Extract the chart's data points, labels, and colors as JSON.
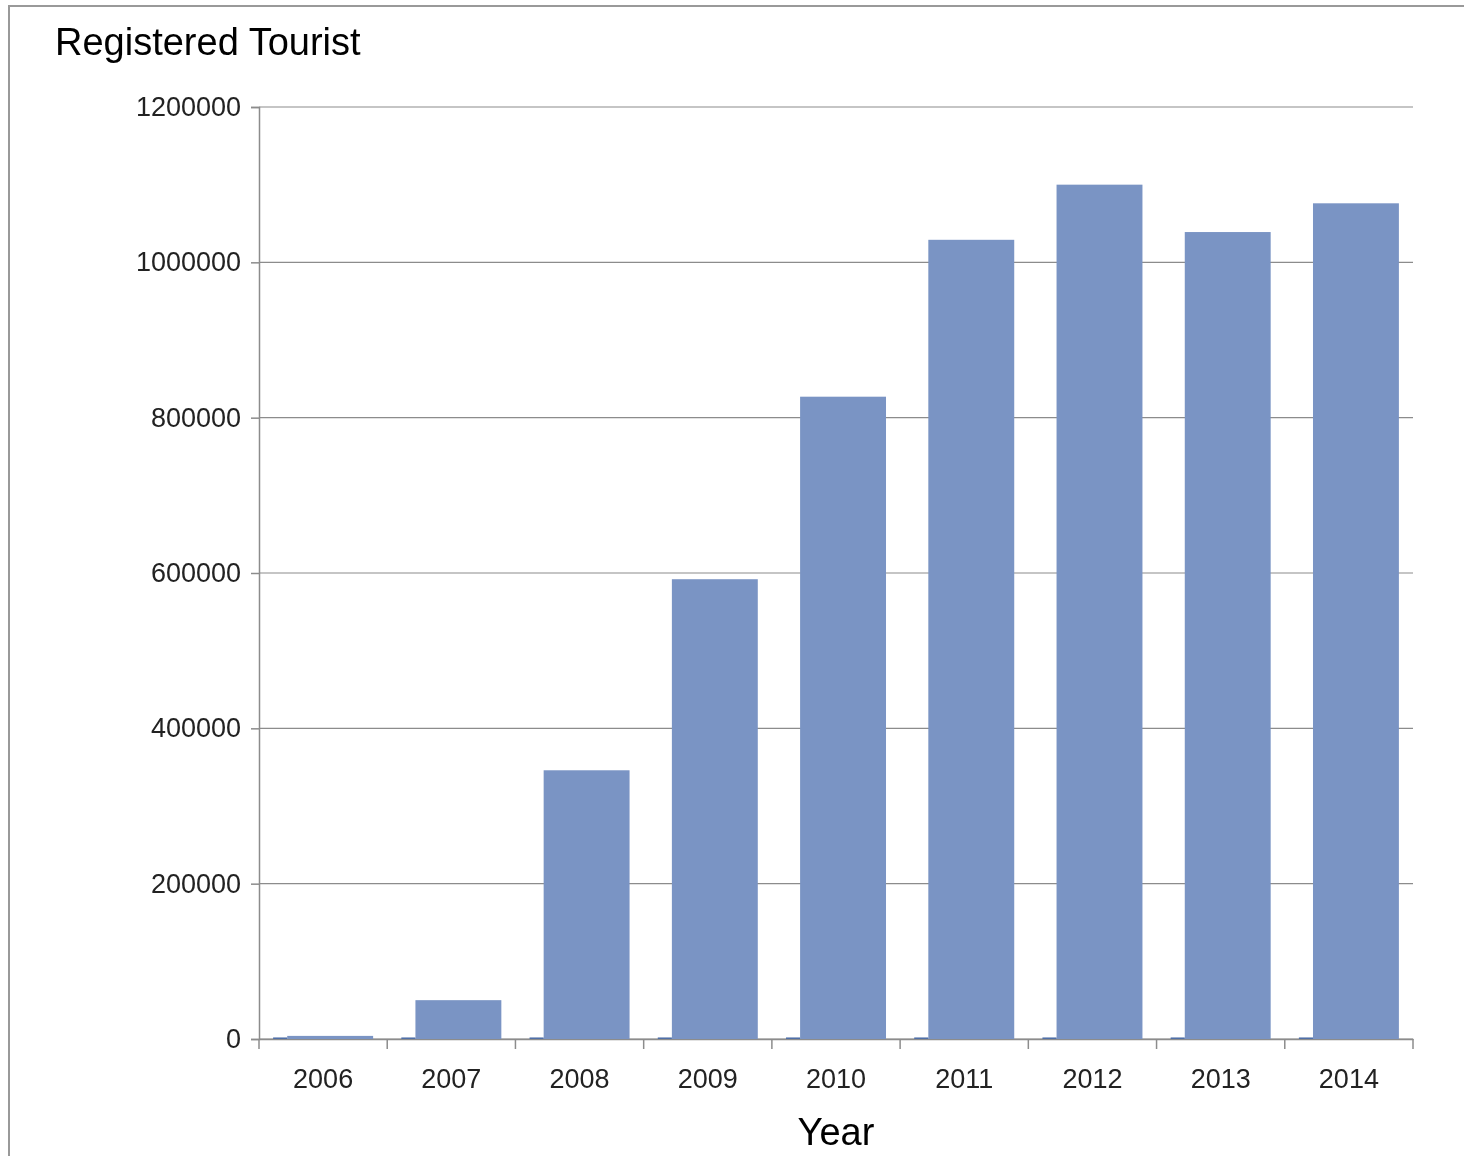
{
  "chart_data": {
    "type": "bar",
    "title": "Registered Tourist",
    "xlabel": "Year",
    "categories": [
      "2006",
      "2007",
      "2008",
      "2009",
      "2010",
      "2011",
      "2012",
      "2013",
      "2014"
    ],
    "series": [
      {
        "color": "#4f6fa8",
        "values": [
          2000,
          2000,
          2000,
          2000,
          2000,
          2000,
          2000,
          2000,
          2000
        ]
      },
      {
        "color": "#7a94c4",
        "values": [
          4000,
          50000,
          346000,
          592000,
          827000,
          1029000,
          1100000,
          1039000,
          1076000
        ]
      }
    ],
    "ylim": [
      0,
      1200000
    ],
    "yticks": [
      0,
      200000,
      400000,
      600000,
      800000,
      1000000,
      1200000
    ],
    "grid": "y"
  }
}
